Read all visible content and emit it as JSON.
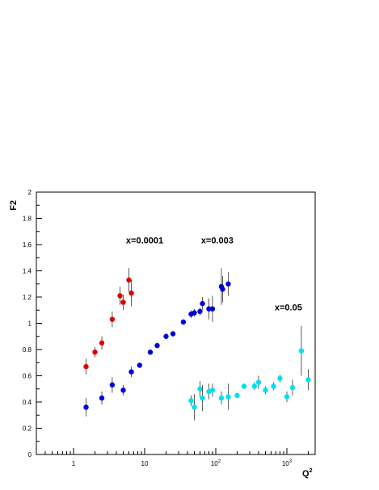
{
  "chart_data": {
    "type": "scatter",
    "title": "",
    "xlabel": "Q",
    "xlabel_sup": "2",
    "ylabel": "F2",
    "xscale": "log",
    "xlim": [
      0.3,
      2500
    ],
    "ylim": [
      0,
      2
    ],
    "grid": false,
    "legend": "none",
    "y_ticks": [
      "0",
      "0.2",
      "0.4",
      "0.6",
      "0.8",
      "1",
      "1.2",
      "1.4",
      "1.6",
      "1.8",
      "2"
    ],
    "x_ticks": [
      {
        "value": 1,
        "base": "1",
        "exp": ""
      },
      {
        "value": 10,
        "base": "10",
        "exp": ""
      },
      {
        "value": 100,
        "base": "10",
        "exp": "2"
      },
      {
        "value": 1000,
        "base": "10",
        "exp": "3"
      }
    ],
    "annotations": [
      {
        "text": "x=0.0001",
        "x": 10,
        "y": 1.61
      },
      {
        "text": "x=0.003",
        "x": 105,
        "y": 1.61
      },
      {
        "text": "x=0.05",
        "x": 1050,
        "y": 1.1
      }
    ],
    "series": [
      {
        "color": "#e00000",
        "points": [
          {
            "x": 1.5,
            "y": 0.67,
            "err": 0.06
          },
          {
            "x": 2.0,
            "y": 0.78,
            "err": 0.04
          },
          {
            "x": 2.5,
            "y": 0.85,
            "err": 0.05
          },
          {
            "x": 3.5,
            "y": 1.03,
            "err": 0.06
          },
          {
            "x": 4.5,
            "y": 1.21,
            "err": 0.07
          },
          {
            "x": 5.0,
            "y": 1.16,
            "err": 0.06
          },
          {
            "x": 6.0,
            "y": 1.33,
            "err": 0.09
          },
          {
            "x": 6.5,
            "y": 1.23,
            "err": 0.1
          }
        ]
      },
      {
        "color": "#0000e0",
        "points": [
          {
            "x": 1.5,
            "y": 0.36,
            "err": 0.07
          },
          {
            "x": 2.5,
            "y": 0.43,
            "err": 0.05
          },
          {
            "x": 3.5,
            "y": 0.53,
            "err": 0.06
          },
          {
            "x": 5.0,
            "y": 0.49,
            "err": 0.04
          },
          {
            "x": 6.5,
            "y": 0.63,
            "err": 0.04
          },
          {
            "x": 8.5,
            "y": 0.68,
            "err": 0.02
          },
          {
            "x": 12,
            "y": 0.78,
            "err": 0.02
          },
          {
            "x": 15,
            "y": 0.83,
            "err": 0.02
          },
          {
            "x": 20,
            "y": 0.9,
            "err": 0.02
          },
          {
            "x": 25,
            "y": 0.92,
            "err": 0.02
          },
          {
            "x": 35,
            "y": 1.01,
            "err": 0.02
          },
          {
            "x": 45,
            "y": 1.07,
            "err": 0.03
          },
          {
            "x": 50,
            "y": 1.08,
            "err": 0.03
          },
          {
            "x": 60,
            "y": 1.09,
            "err": 0.03
          },
          {
            "x": 65,
            "y": 1.15,
            "err": 0.05
          },
          {
            "x": 80,
            "y": 1.11,
            "err": 0.08
          },
          {
            "x": 90,
            "y": 1.11,
            "err": 0.1
          },
          {
            "x": 120,
            "y": 1.28,
            "err": 0.14
          },
          {
            "x": 125,
            "y": 1.26,
            "err": 0.1
          },
          {
            "x": 150,
            "y": 1.3,
            "err": 0.09
          }
        ]
      },
      {
        "color": "#00e0f0",
        "points": [
          {
            "x": 45,
            "y": 0.41,
            "err": 0.04
          },
          {
            "x": 50,
            "y": 0.36,
            "err": 0.1
          },
          {
            "x": 60,
            "y": 0.5,
            "err": 0.06
          },
          {
            "x": 65,
            "y": 0.43,
            "err": 0.1
          },
          {
            "x": 80,
            "y": 0.48,
            "err": 0.06
          },
          {
            "x": 90,
            "y": 0.49,
            "err": 0.05
          },
          {
            "x": 120,
            "y": 0.43,
            "err": 0.05
          },
          {
            "x": 150,
            "y": 0.44,
            "err": 0.1
          },
          {
            "x": 200,
            "y": 0.45,
            "err": 0.02
          },
          {
            "x": 250,
            "y": 0.52,
            "err": 0.02
          },
          {
            "x": 350,
            "y": 0.52,
            "err": 0.03
          },
          {
            "x": 400,
            "y": 0.55,
            "err": 0.05
          },
          {
            "x": 500,
            "y": 0.49,
            "err": 0.03
          },
          {
            "x": 650,
            "y": 0.52,
            "err": 0.03
          },
          {
            "x": 800,
            "y": 0.58,
            "err": 0.03
          },
          {
            "x": 1000,
            "y": 0.44,
            "err": 0.04
          },
          {
            "x": 1200,
            "y": 0.51,
            "err": 0.06
          },
          {
            "x": 1600,
            "y": 0.79,
            "err": 0.19
          },
          {
            "x": 2000,
            "y": 0.57,
            "err": 0.08
          }
        ]
      }
    ]
  }
}
